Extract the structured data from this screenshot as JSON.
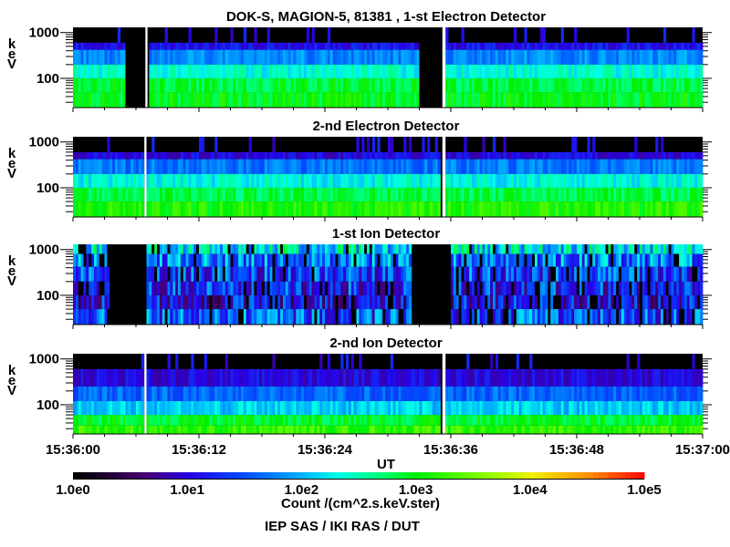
{
  "chart_data": {
    "type": "heatmap",
    "title": "DOK-S, MAGION-5, 81381 , 1-st Electron Detector",
    "xlabel": "UT",
    "xlim_seconds": [
      0,
      60
    ],
    "x_ticks": [
      "15:36:00",
      "15:36:12",
      "15:36:24",
      "15:36:36",
      "15:36:48",
      "15:37:00"
    ],
    "y_unit_letters": [
      "k",
      "e",
      "V"
    ],
    "y_ticks": [
      "1000",
      "100"
    ],
    "ylim_keV": [
      23,
      1300
    ],
    "colorbar": {
      "ticks": [
        "1.0e0",
        "1.0e1",
        "1.0e2",
        "1.0e3",
        "1.0e4",
        "1.0e5"
      ],
      "range_log10": [
        0,
        5
      ],
      "label": "Count /(cm^2.s.keV.ster)"
    },
    "credit": "IEP SAS / IKI RAS / DUT",
    "panels": [
      {
        "title": "DOK-S, MAGION-5, 81381 , 1-st Electron Detector",
        "bands": [
          {
            "lo": 600,
            "hi": 1300,
            "log10": 0.0
          },
          {
            "lo": 420,
            "hi": 600,
            "log10": 1.1
          },
          {
            "lo": 200,
            "hi": 420,
            "log10": 1.8
          },
          {
            "lo": 100,
            "hi": 200,
            "log10": 2.35
          },
          {
            "lo": 50,
            "hi": 100,
            "log10": 2.85
          },
          {
            "lo": 23,
            "hi": 50,
            "log10": 2.95
          }
        ],
        "gaps": [
          {
            "t0": 5.0,
            "t1": 6.9,
            "kind": "black"
          },
          {
            "t0": 6.9,
            "t1": 7.1,
            "kind": "white"
          },
          {
            "t0": 33.0,
            "t1": 35.2,
            "kind": "black"
          },
          {
            "t0": 35.2,
            "t1": 35.5,
            "kind": "white"
          }
        ]
      },
      {
        "title": "2-nd Electron Detector",
        "bands": [
          {
            "lo": 600,
            "hi": 1300,
            "log10": 0.0
          },
          {
            "lo": 420,
            "hi": 600,
            "log10": 1.0
          },
          {
            "lo": 200,
            "hi": 420,
            "log10": 1.7
          },
          {
            "lo": 100,
            "hi": 200,
            "log10": 2.3
          },
          {
            "lo": 50,
            "hi": 100,
            "log10": 2.8
          },
          {
            "lo": 23,
            "hi": 50,
            "log10": 3.1
          }
        ],
        "gaps": [
          {
            "t0": 6.8,
            "t1": 7.0,
            "kind": "white"
          },
          {
            "t0": 35.2,
            "t1": 35.5,
            "kind": "white"
          }
        ]
      },
      {
        "title": "1-st Ion Detector",
        "bands": [
          {
            "lo": 800,
            "hi": 1300,
            "log10": 2.2
          },
          {
            "lo": 420,
            "hi": 800,
            "log10": 1.7
          },
          {
            "lo": 200,
            "hi": 420,
            "log10": 1.4
          },
          {
            "lo": 100,
            "hi": 200,
            "log10": 1.3
          },
          {
            "lo": 50,
            "hi": 100,
            "log10": 1.1
          },
          {
            "lo": 23,
            "hi": 50,
            "log10": 1.5
          }
        ],
        "gaps": [
          {
            "t0": 3.5,
            "t1": 6.8,
            "kind": "black"
          },
          {
            "t0": 32.3,
            "t1": 35.8,
            "kind": "black"
          }
        ]
      },
      {
        "title": "2-nd Ion Detector",
        "bands": [
          {
            "lo": 600,
            "hi": 1300,
            "log10": 0.0
          },
          {
            "lo": 250,
            "hi": 600,
            "log10": 1.0
          },
          {
            "lo": 120,
            "hi": 250,
            "log10": 1.6
          },
          {
            "lo": 60,
            "hi": 120,
            "log10": 2.1
          },
          {
            "lo": 35,
            "hi": 60,
            "log10": 2.9
          },
          {
            "lo": 23,
            "hi": 35,
            "log10": 3.2
          }
        ],
        "gaps": [
          {
            "t0": 6.8,
            "t1": 7.0,
            "kind": "white"
          },
          {
            "t0": 35.2,
            "t1": 35.5,
            "kind": "white"
          }
        ]
      }
    ]
  }
}
